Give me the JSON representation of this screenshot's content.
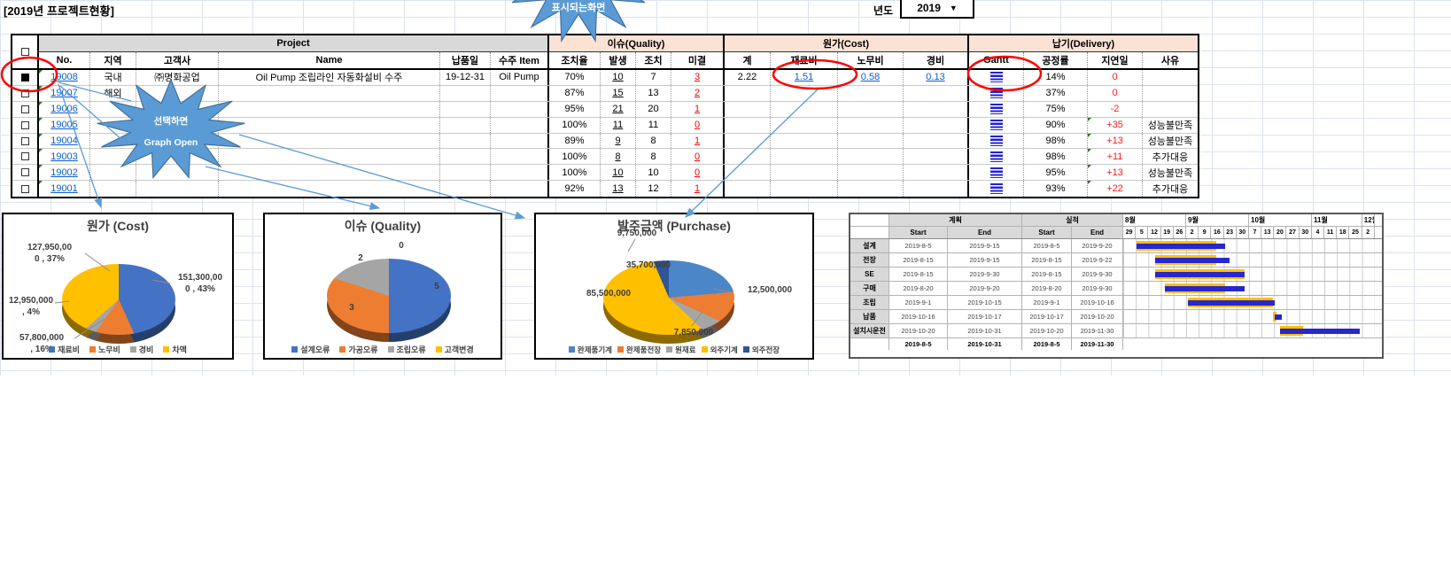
{
  "title": "[2019년 프로젝트현황]",
  "year_selector": {
    "label": "년도",
    "value": "2019",
    "dropdown_icon": "▼"
  },
  "callouts": {
    "top": "표시되는화면",
    "select_line1": "선택하면",
    "select_line2": "Graph Open"
  },
  "table": {
    "groups": {
      "project": "Project",
      "quality": "이슈(Quality)",
      "cost": "원가(Cost)",
      "delivery": "납기(Delivery)"
    },
    "columns": [
      "No.",
      "지역",
      "고객사",
      "Name",
      "납품일",
      "수주 Item",
      "조치율",
      "발생",
      "조치",
      "미결",
      "계",
      "재료비",
      "노무비",
      "경비",
      "Gantt",
      "공정률",
      "지연일",
      "사유"
    ],
    "rows": [
      {
        "checked": true,
        "no": "19008",
        "region": "국내",
        "customer": "㈜명화공업",
        "name": "Oil Pump 조립라인 자동화설비 수주",
        "due": "19-12-31",
        "item": "Oil Pump",
        "rate": "70%",
        "occur": "10",
        "fixed": "7",
        "open": "3",
        "total": "2.22",
        "material": "1.51",
        "labor": "0.58",
        "expense": "0.13",
        "progress": "14%",
        "delay": "0",
        "reason": ""
      },
      {
        "checked": false,
        "no": "19007",
        "region": "해외",
        "customer": "",
        "name": "",
        "due": "",
        "item": "",
        "rate": "87%",
        "occur": "15",
        "fixed": "13",
        "open": "2",
        "total": "",
        "material": "",
        "labor": "",
        "expense": "",
        "progress": "37%",
        "delay": "0",
        "reason": ""
      },
      {
        "checked": false,
        "no": "19006",
        "region": "",
        "customer": "",
        "name": "",
        "due": "",
        "item": "",
        "rate": "95%",
        "occur": "21",
        "fixed": "20",
        "open": "1",
        "total": "",
        "material": "",
        "labor": "",
        "expense": "",
        "progress": "75%",
        "delay": "-2",
        "reason": ""
      },
      {
        "checked": false,
        "no": "19005",
        "region": "",
        "customer": "",
        "name": "",
        "due": "",
        "item": "",
        "rate": "100%",
        "occur": "11",
        "fixed": "11",
        "open": "0",
        "total": "",
        "material": "",
        "labor": "",
        "expense": "",
        "progress": "90%",
        "delay": "+35",
        "reason": "성능불만족"
      },
      {
        "checked": false,
        "no": "19004",
        "region": "",
        "customer": "",
        "name": "",
        "due": "",
        "item": "",
        "rate": "89%",
        "occur": "9",
        "fixed": "8",
        "open": "1",
        "total": "",
        "material": "",
        "labor": "",
        "expense": "",
        "progress": "98%",
        "delay": "+13",
        "reason": "성능불만족"
      },
      {
        "checked": false,
        "no": "19003",
        "region": "",
        "customer": "",
        "name": "",
        "due": "",
        "item": "",
        "rate": "100%",
        "occur": "8",
        "fixed": "8",
        "open": "0",
        "total": "",
        "material": "",
        "labor": "",
        "expense": "",
        "progress": "98%",
        "delay": "+11",
        "reason": "추가대응"
      },
      {
        "checked": false,
        "no": "19002",
        "region": "",
        "customer": "",
        "name": "",
        "due": "",
        "item": "",
        "rate": "100%",
        "occur": "10",
        "fixed": "10",
        "open": "0",
        "total": "",
        "material": "",
        "labor": "",
        "expense": "",
        "progress": "95%",
        "delay": "+13",
        "reason": "성능불만족"
      },
      {
        "checked": false,
        "no": "19001",
        "region": "",
        "customer": "",
        "name": "",
        "due": "",
        "item": "",
        "rate": "92%",
        "occur": "13",
        "fixed": "12",
        "open": "1",
        "total": "",
        "material": "",
        "labor": "",
        "expense": "",
        "progress": "93%",
        "delay": "+22",
        "reason": "추가대응"
      }
    ]
  },
  "chart_data": [
    {
      "type": "pie",
      "title": "원가 (Cost)",
      "labels": [
        "재료비",
        "노무비",
        "경비",
        "차액"
      ],
      "values": [
        151300000,
        57800000,
        12950000,
        127950000
      ],
      "percents": [
        43,
        16,
        4,
        37
      ],
      "value_labels": [
        "151,300,00\n0 , 43%",
        "57,800,000\n, 16%",
        "12,950,000\n, 4%",
        "127,950,00\n0 , 37%"
      ],
      "colors": [
        "#4472C4",
        "#ED7D31",
        "#A5A5A5",
        "#FFC000"
      ]
    },
    {
      "type": "pie",
      "title": "이슈 (Quality)",
      "labels": [
        "설계오류",
        "가공오류",
        "조립오류",
        "고객변경"
      ],
      "values": [
        5,
        3,
        2,
        0
      ],
      "value_labels": [
        "5",
        "3",
        "2",
        "0"
      ],
      "colors": [
        "#4472C4",
        "#ED7D31",
        "#A5A5A5",
        "#FFC000"
      ]
    },
    {
      "type": "pie",
      "title": "발주금액 (Purchase)",
      "labels": [
        "완제품기계",
        "완제품전장",
        "원재료",
        "외주기계",
        "외주전장"
      ],
      "values": [
        35700000,
        12500000,
        7850000,
        85500000,
        9750000
      ],
      "value_labels": [
        "35,700,000",
        "12,500,000",
        "7,850,000",
        "85,500,000",
        "9,750,000"
      ],
      "colors": [
        "#4A86C8",
        "#ED7D31",
        "#A5A5A5",
        "#FFC000",
        "#2F5597"
      ]
    },
    {
      "type": "gantt",
      "plan_label": "계획",
      "actual_label": "실적",
      "start_label": "Start",
      "end_label": "End",
      "months": [
        {
          "label": "8월",
          "span": 5
        },
        {
          "label": "9월",
          "span": 5
        },
        {
          "label": "10월",
          "span": 5
        },
        {
          "label": "11월",
          "span": 4
        },
        {
          "label": "12월",
          "span": 1
        }
      ],
      "days": [
        "29",
        "5",
        "12",
        "19",
        "26",
        "2",
        "9",
        "16",
        "23",
        "30",
        "7",
        "13",
        "20",
        "27",
        "30",
        "4",
        "11",
        "18",
        "25",
        "2"
      ],
      "axis_start": "2019-7-29",
      "axis_days": 133,
      "rows": [
        {
          "task": "설계",
          "plan_start": "2019-8-5",
          "plan_end": "2019-9-15",
          "act_start": "2019-8-5",
          "act_end": "2019-9-20"
        },
        {
          "task": "전장",
          "plan_start": "2019-8-15",
          "plan_end": "2019-9-15",
          "act_start": "2019-8-15",
          "act_end": "2019-9-22"
        },
        {
          "task": "SE",
          "plan_start": "2019-8-15",
          "plan_end": "2019-9-30",
          "act_start": "2019-8-15",
          "act_end": "2019-9-30"
        },
        {
          "task": "구매",
          "plan_start": "2019-8-20",
          "plan_end": "2019-9-20",
          "act_start": "2019-8-20",
          "act_end": "2019-9-30"
        },
        {
          "task": "조립",
          "plan_start": "2019-9-1",
          "plan_end": "2019-10-15",
          "act_start": "2019-9-1",
          "act_end": "2019-10-16"
        },
        {
          "task": "납품",
          "plan_start": "2019-10-16",
          "plan_end": "2019-10-17",
          "act_start": "2019-10-17",
          "act_end": "2019-10-20"
        },
        {
          "task": "설치시운전",
          "plan_start": "2019-10-20",
          "plan_end": "2019-10-31",
          "act_start": "2019-10-20",
          "act_end": "2019-11-30"
        }
      ],
      "summary": {
        "plan_start": "2019-8-5",
        "plan_end": "2019-10-31",
        "act_start": "2019-8-5",
        "act_end": "2019-11-30"
      },
      "bar_colors": {
        "plan": "#FFC000",
        "actual": "#2727CC"
      }
    }
  ]
}
